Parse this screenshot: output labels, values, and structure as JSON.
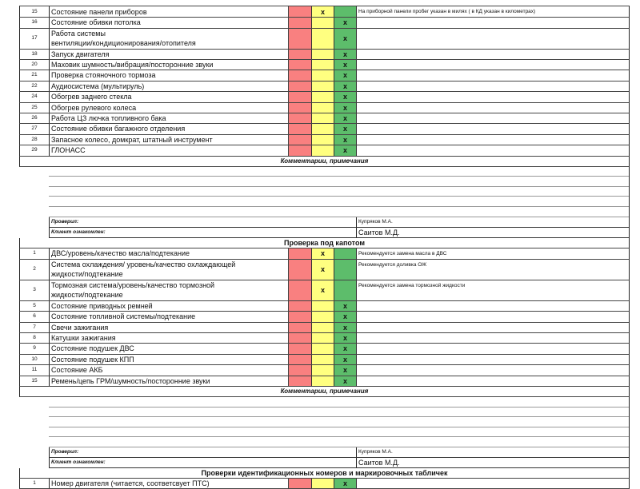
{
  "colors": {
    "bad": "#f98080",
    "warn": "#ffff80",
    "ok": "#5dbd6b"
  },
  "mark": "x",
  "sections": [
    {
      "title": "",
      "items": [
        {
          "num": "15",
          "text": "Состояние панели приборов",
          "status": "warn",
          "note": "На приборной панели пробег указан в милях ( в КД указан в километрах)"
        },
        {
          "num": "16",
          "text": "Состояние обивки потолка",
          "status": "ok",
          "note": ""
        },
        {
          "num": "17",
          "text": "Работа системы\nвентиляции/кондиционирования/отопителя",
          "status": "ok",
          "note": ""
        },
        {
          "num": "18",
          "text": "Запуск двигателя",
          "status": "ok",
          "note": ""
        },
        {
          "num": "20",
          "text": "Маховик шумность/вибрация/посторонние звуки",
          "status": "ok",
          "note": ""
        },
        {
          "num": "21",
          "text": "Проверка стояночного тормоза",
          "status": "ok",
          "note": ""
        },
        {
          "num": "22",
          "text": "Аудиосистема (мультируль)",
          "status": "ok",
          "note": ""
        },
        {
          "num": "24",
          "text": "Обогрев заднего стекла",
          "status": "ok",
          "note": ""
        },
        {
          "num": "25",
          "text": "Обогрев рулевого колеса",
          "status": "ok",
          "note": ""
        },
        {
          "num": "26",
          "text": "Работа ЦЗ лючка топливного бака",
          "status": "ok",
          "note": ""
        },
        {
          "num": "27",
          "text": "Состояние обивки багажного отделения",
          "status": "ok",
          "note": ""
        },
        {
          "num": "28",
          "text": "Запасное колесо, домкрат, штатный инструмент",
          "status": "ok",
          "note": ""
        },
        {
          "num": "29",
          "text": "ГЛОНАСС",
          "status": "ok",
          "note": ""
        }
      ],
      "comments_title": "Комментарии, примечания",
      "checked_label": "Проверил:",
      "checked_value": "Купряков М.А.",
      "client_label": "Клиент ознакомлен:",
      "client_value": "Саитов М.Д."
    },
    {
      "title": "Проверка под капотом",
      "items": [
        {
          "num": "1",
          "text": "ДВС/уровень/качество масла/подтекание",
          "status": "warn",
          "note": "Рекомендуется замена масла в ДВС"
        },
        {
          "num": "2",
          "text": "Система охлаждения/ уровень/качество охлаждающей\nжидкости/подтекание",
          "status": "warn",
          "note": "Рекомендуется доливка ОЖ"
        },
        {
          "num": "3",
          "text": "Тормозная система/уровень/качество тормозной\nжидкости/подтекание",
          "status": "warn",
          "note": "Рекомендуется замена тормозной жидкости"
        },
        {
          "num": "5",
          "text": "Состояние приводных ремней",
          "status": "ok",
          "note": ""
        },
        {
          "num": "6",
          "text": "Состояние топливной системы/подтекание",
          "status": "ok",
          "note": ""
        },
        {
          "num": "7",
          "text": "Свечи зажигания",
          "status": "ok",
          "note": ""
        },
        {
          "num": "8",
          "text": "Катушки зажигания",
          "status": "ok",
          "note": ""
        },
        {
          "num": "9",
          "text": "Состояние подушек ДВС",
          "status": "ok",
          "note": ""
        },
        {
          "num": "10",
          "text": "Состояние подушек КПП",
          "status": "ok",
          "note": ""
        },
        {
          "num": "11",
          "text": "Состояние АКБ",
          "status": "ok",
          "note": ""
        },
        {
          "num": "15",
          "text": "Ремень/цепь ГРМ/шумность/посторонние звуки",
          "status": "ok",
          "note": ""
        }
      ],
      "comments_title": "Комментарии, примечания",
      "checked_label": "Проверил:",
      "checked_value": "Купряков М.А.",
      "client_label": "Клиент ознакомлен:",
      "client_value": "Саитов М.Д."
    },
    {
      "title": "Проверки идентификационных номеров и маркировочных табличек",
      "items": [
        {
          "num": "1",
          "text": "Номер двигателя (читается, соответсвует ПТС)",
          "status": "ok",
          "note": ""
        }
      ]
    }
  ]
}
